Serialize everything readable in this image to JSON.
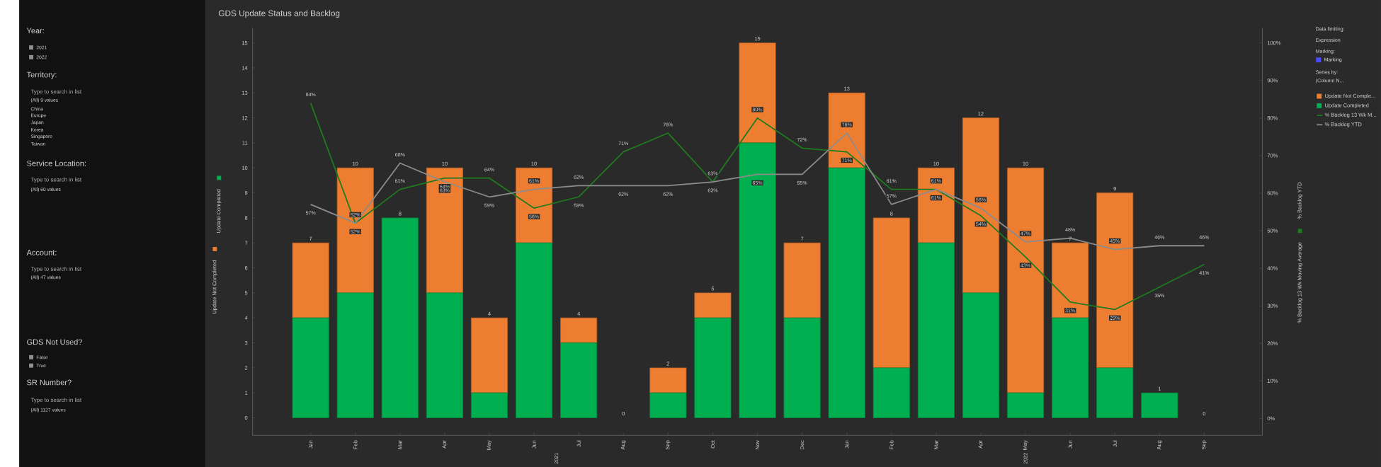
{
  "chart_data": {
    "type": "bar",
    "title": "GDS Update Status and Backlog",
    "ylabel": "Update Completed",
    "y2label": "% Backlog YTD",
    "categories": [
      "Jan",
      "Feb",
      "Mar",
      "Apr",
      "May",
      "Jun",
      "Jul",
      "Aug",
      "Sep",
      "Oct",
      "Nov",
      "Dec",
      "Jan",
      "Feb",
      "Mar",
      "Apr",
      "May",
      "Jun",
      "Jul",
      "Aug",
      "Sep"
    ],
    "stacked": true,
    "legend": "right",
    "ylim": [
      -0.7,
      15.6
    ],
    "yticks": [
      0,
      1,
      2,
      3,
      4,
      5,
      6,
      7,
      8,
      9,
      10,
      11,
      12,
      13,
      14,
      15
    ],
    "y2lim": [
      -4.5,
      104
    ],
    "y2ticks": [
      {
        "value": 0,
        "label": "0%"
      },
      {
        "value": 10,
        "label": "10%"
      },
      {
        "value": 20,
        "label": "20%"
      },
      {
        "value": 30,
        "label": "30%"
      },
      {
        "value": 40,
        "label": "40%"
      },
      {
        "value": 50,
        "label": "50%"
      },
      {
        "value": 60,
        "label": "60%"
      },
      {
        "value": 70,
        "label": "70%"
      },
      {
        "value": 80,
        "label": "80%"
      },
      {
        "value": 90,
        "label": "90%"
      },
      {
        "value": 100,
        "label": "100%"
      }
    ],
    "series": [
      {
        "name": "Update Completed",
        "color": "#00b050",
        "values": [
          4,
          5,
          8,
          5,
          1,
          7,
          3,
          0,
          1,
          4,
          11,
          4,
          10,
          2,
          7,
          5,
          1,
          4,
          2,
          1,
          0
        ]
      },
      {
        "name": "Update Not Comple...",
        "color": "#ed7d31",
        "values": [
          3,
          5,
          0,
          5,
          3,
          3,
          1,
          0,
          1,
          1,
          4,
          3,
          3,
          6,
          3,
          7,
          9,
          3,
          7,
          0,
          0
        ]
      },
      {
        "name": "% Backlog 13 Wk M...",
        "type": "line",
        "axis": "y2",
        "color": "#1e7b1e",
        "values": [
          84,
          52,
          61,
          64,
          64,
          56,
          59,
          71,
          76,
          63,
          80,
          72,
          71,
          61,
          61,
          54,
          43,
          31,
          29,
          35,
          41
        ],
        "value_labels": [
          "84%",
          "52%",
          "61%",
          "64%",
          "64%",
          "56%",
          "59%",
          "71%",
          "76%",
          "63%",
          "80%",
          "72%",
          "71%",
          "61%",
          "61%",
          "54%",
          "43%",
          "31%",
          "29%",
          "35%",
          "41%"
        ]
      },
      {
        "name": "% Backlog YTD",
        "type": "line",
        "axis": "y2",
        "color": "#8c8c8c",
        "values": [
          57,
          52,
          68,
          63,
          59,
          61,
          62,
          62,
          62,
          63,
          65,
          65,
          76,
          57,
          61,
          56,
          47,
          48,
          45,
          46,
          46
        ],
        "value_labels": [
          "57%",
          "52%",
          "68%",
          "63%",
          "59%",
          "61%",
          "62%",
          "62%",
          "62%",
          "63%",
          "65%",
          "65%",
          "76%",
          "57%",
          "61%",
          "56%",
          "47%",
          "48%",
          "45%",
          "46%",
          "46%"
        ]
      }
    ],
    "totals": [
      "7",
      "10",
      "8",
      "10",
      "4",
      "10",
      "4",
      "0",
      "2",
      "5",
      "15",
      "7",
      "13",
      "8",
      "10",
      "12",
      "10",
      "7",
      "9",
      "1",
      "0"
    ],
    "annotations": [
      "2021",
      "2022",
      "Update Not Completed",
      "% Backlog 13 Wk Moving Average",
      "Data limiting:",
      "Expression",
      "Marking:",
      "Marking",
      "Series by:",
      "(Column N...",
      "Year:",
      "2021",
      "2022",
      "Territory:",
      "(All) 9 values",
      "China",
      "Europe",
      "Japan",
      "Korea",
      "Singapore",
      "Taiwan",
      "Service Location:",
      "(All) 60 values",
      "Account:",
      "(All) 47 values",
      "GDS Not Used?",
      "False",
      "True",
      "SR Number?",
      "(All) 1127 values",
      "Type to search in list",
      "Type to search in list",
      "Type to search in list",
      "Type to search in list"
    ]
  }
}
